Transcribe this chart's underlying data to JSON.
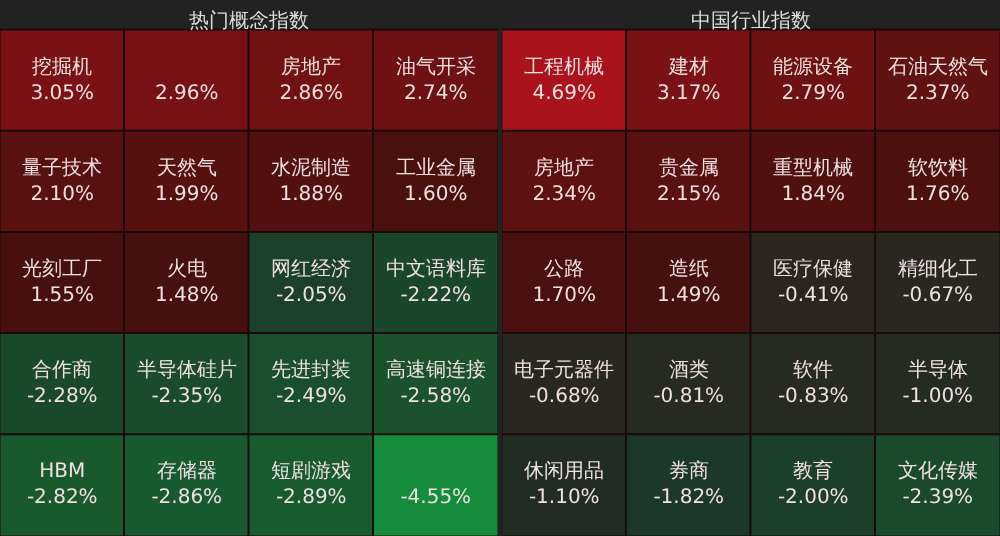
{
  "chart_data": [
    {
      "type": "other",
      "title": "热门概念指数",
      "categories": [
        "挖掘机",
        null,
        "房地产",
        "油气开采",
        "量子技术",
        "天然气",
        "水泥制造",
        "工业金属",
        "光刻工厂",
        "火电",
        "网红经济",
        "中文语料库",
        "合作商",
        "半导体硅片",
        "先进封装",
        "高速铜连接",
        "HBM",
        "存储器",
        "短剧游戏",
        null
      ],
      "values": [
        3.05,
        2.96,
        2.86,
        2.74,
        2.1,
        1.99,
        1.88,
        1.6,
        1.55,
        1.48,
        -2.05,
        -2.22,
        -2.28,
        -2.35,
        -2.49,
        -2.58,
        -2.82,
        -2.86,
        -2.89,
        -4.55
      ],
      "value_labels": [
        "3.05%",
        "2.96%",
        "2.86%",
        "2.74%",
        "2.10%",
        "1.99%",
        "1.88%",
        "1.60%",
        "1.55%",
        "1.48%",
        "-2.05%",
        "-2.22%",
        "-2.28%",
        "-2.35%",
        "-2.49%",
        "-2.58%",
        "-2.82%",
        "-2.86%",
        "-2.89%",
        "-4.55%"
      ]
    },
    {
      "type": "other",
      "title": "中国行业指数",
      "categories": [
        "工程机械",
        "建材",
        "能源设备",
        "石油天然气",
        "房地产",
        "贵金属",
        "重型机械",
        "软饮料",
        "公路",
        "造纸",
        "医疗保健",
        "精细化工",
        "电子元器件",
        "酒类",
        "软件",
        "半导体",
        "休闲用品",
        "券商",
        "教育",
        "文化传媒"
      ],
      "values": [
        4.69,
        3.17,
        2.79,
        2.37,
        2.34,
        2.15,
        1.84,
        1.76,
        1.7,
        1.49,
        -0.41,
        -0.67,
        -0.68,
        -0.81,
        -0.83,
        -1.0,
        -1.1,
        -1.82,
        -2.0,
        -2.39
      ],
      "value_labels": [
        "4.69%",
        "3.17%",
        "2.79%",
        "2.37%",
        "2.34%",
        "2.15%",
        "1.84%",
        "1.76%",
        "1.70%",
        "1.49%",
        "-0.41%",
        "-0.67%",
        "-0.68%",
        "-0.81%",
        "-0.83%",
        "-1.00%",
        "-1.10%",
        "-1.82%",
        "-2.00%",
        "-2.39%"
      ]
    }
  ]
}
